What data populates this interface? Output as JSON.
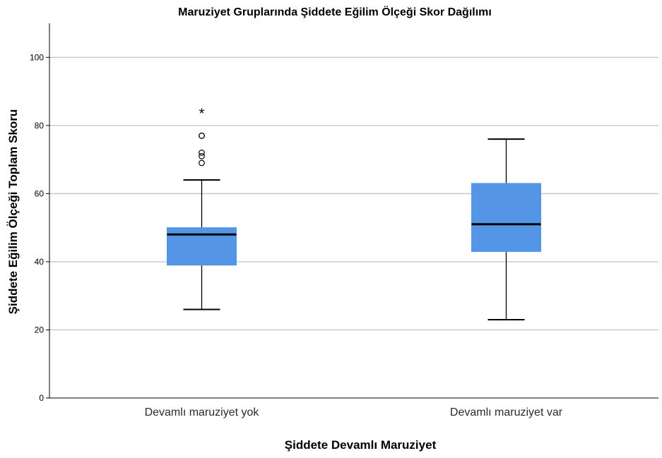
{
  "chart_data": {
    "type": "boxplot",
    "title": "Maruziyet Gruplarında Şiddete Eğilim Ölçeği Skor Dağılımı",
    "xlabel": "Şiddete Devamlı Maruziyet",
    "ylabel": "Şiddete Eğilim Ölçeği Toplam Skoru",
    "ylim": [
      0,
      110
    ],
    "yticks": [
      "0",
      "20",
      "40",
      "60",
      "80",
      "100"
    ],
    "grid": true,
    "box_color": "#5595e5",
    "categories": [
      "Devamlı maruziyet yok",
      "Devamlı maruziyet var"
    ],
    "boxes": [
      {
        "category": "Devamlı maruziyet yok",
        "min": 26,
        "q1": 39,
        "median": 48,
        "q3": 50,
        "max": 64,
        "outliers": [
          69,
          71,
          72,
          77,
          77
        ],
        "extremes": [
          84
        ]
      },
      {
        "category": "Devamlı maruziyet var",
        "min": 23,
        "q1": 43,
        "median": 51,
        "q3": 63,
        "max": 76,
        "outliers": [],
        "extremes": []
      }
    ]
  }
}
